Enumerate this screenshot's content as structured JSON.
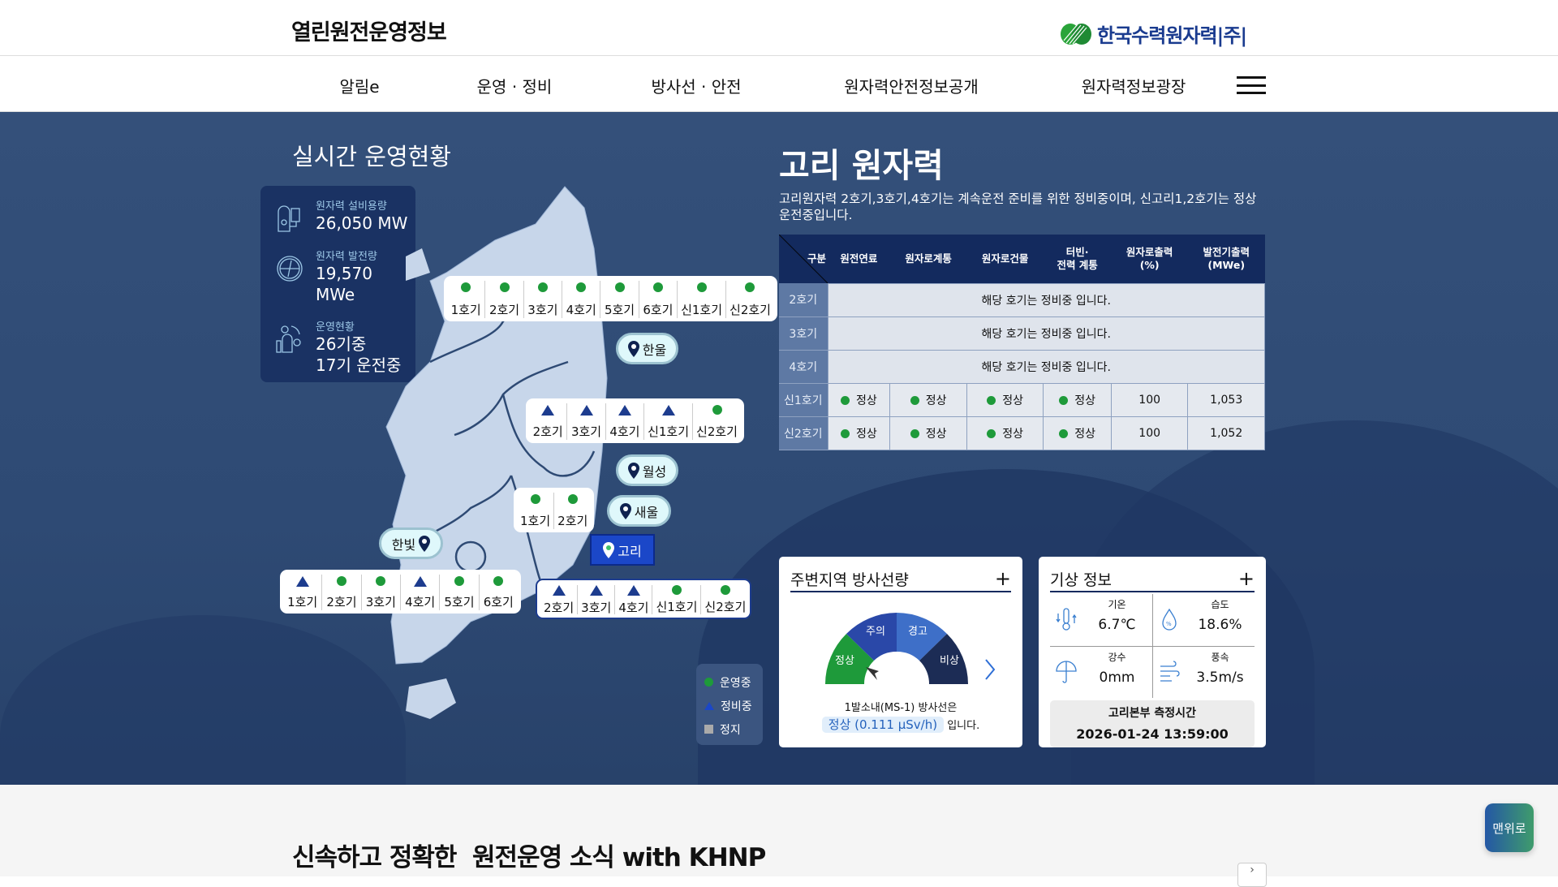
{
  "header": {
    "site_title": "열린원전운영정보",
    "logo_text": "한국수력원자력|주|"
  },
  "nav": {
    "items": [
      "알림e",
      "운영 · 정비",
      "방사선 · 안전",
      "원자력안전정보공개",
      "원자력정보광장"
    ]
  },
  "realtime": {
    "title": "실시간 운영현황",
    "stats": [
      {
        "label": "원자력 설비용량",
        "value": "26,050 MW",
        "icon": "reactor-icon"
      },
      {
        "label": "원자력 발전량",
        "value": "19,570 MWe",
        "icon": "gauge-icon"
      },
      {
        "label": "운영현황",
        "value": "26기중",
        "value2": "17기 운전중",
        "icon": "plant-gear-icon"
      }
    ]
  },
  "sites": [
    {
      "name": "한울",
      "units": [
        [
          "1호기",
          "run"
        ],
        [
          "2호기",
          "run"
        ],
        [
          "3호기",
          "run"
        ],
        [
          "4호기",
          "run"
        ],
        [
          "5호기",
          "run"
        ],
        [
          "6호기",
          "run"
        ],
        [
          "신1호기",
          "run"
        ],
        [
          "신2호기",
          "run"
        ]
      ]
    },
    {
      "name": "월성",
      "units": [
        [
          "2호기",
          "maint"
        ],
        [
          "3호기",
          "maint"
        ],
        [
          "4호기",
          "maint"
        ],
        [
          "신1호기",
          "maint"
        ],
        [
          "신2호기",
          "run"
        ]
      ]
    },
    {
      "name": "새울",
      "units": [
        [
          "1호기",
          "run"
        ],
        [
          "2호기",
          "run"
        ]
      ]
    },
    {
      "name": "고리",
      "selected": true,
      "units": [
        [
          "2호기",
          "maint"
        ],
        [
          "3호기",
          "maint"
        ],
        [
          "4호기",
          "maint"
        ],
        [
          "신1호기",
          "run"
        ],
        [
          "신2호기",
          "run"
        ]
      ]
    },
    {
      "name": "한빛",
      "units": [
        [
          "1호기",
          "maint"
        ],
        [
          "2호기",
          "run"
        ],
        [
          "3호기",
          "run"
        ],
        [
          "4호기",
          "maint"
        ],
        [
          "5호기",
          "run"
        ],
        [
          "6호기",
          "run"
        ]
      ]
    }
  ],
  "legend": {
    "run": "운영중",
    "maint": "정비중",
    "stop": "정지"
  },
  "plant": {
    "title": "고리 원자력",
    "desc": "고리원자력 2호기,3호기,4호기는 계속운전 준비를 위한 정비중이며, 신고리1,2호기는 정상운전중입니다.",
    "table": {
      "headers": [
        "구분",
        "원전연료",
        "원자로계통",
        "원자로건물",
        "터빈·\n전력 계통",
        "원자로출력\n(%)",
        "발전기출력\n(MWe)"
      ],
      "rows": [
        {
          "unit": "2호기",
          "message": "해당 호기는 정비중 입니다."
        },
        {
          "unit": "3호기",
          "message": "해당 호기는 정비중 입니다."
        },
        {
          "unit": "4호기",
          "message": "해당 호기는 정비중 입니다."
        },
        {
          "unit": "신1호기",
          "cells": [
            "정상",
            "정상",
            "정상",
            "정상"
          ],
          "power": "100",
          "output": "1,053"
        },
        {
          "unit": "신2호기",
          "cells": [
            "정상",
            "정상",
            "정상",
            "정상"
          ],
          "power": "100",
          "output": "1,052"
        }
      ]
    }
  },
  "radiation": {
    "title": "주변지역 방사선량",
    "levels": [
      "정상",
      "주의",
      "경고",
      "비상"
    ],
    "current_level": "정상",
    "msg1": "1발소내(MS-1) 방사선은",
    "badge": "정상 (0.111 μSv/h)",
    "msg2": "입니다."
  },
  "weather": {
    "title": "기상 정보",
    "items": [
      {
        "label": "기온",
        "value": "6.7℃",
        "icon": "thermometer-icon"
      },
      {
        "label": "습도",
        "value": "18.6%",
        "icon": "humidity-drop-icon"
      },
      {
        "label": "강수",
        "value": "0mm",
        "icon": "umbrella-icon"
      },
      {
        "label": "풍속",
        "value": "3.5m/s",
        "icon": "wind-icon"
      }
    ],
    "time_label": "고리본부 측정시간",
    "time": "2026-01-24 13:59:00"
  },
  "news": {
    "title": "신속하고 정확한  원전운영 소식 with KHNP"
  },
  "to_top": "맨위로",
  "colors": {
    "run": "#1e9a3a",
    "maint": "#1d3c8e",
    "stop": "#aaaaaa",
    "hero": "#2e4a74",
    "table_header": "#132a5e"
  }
}
